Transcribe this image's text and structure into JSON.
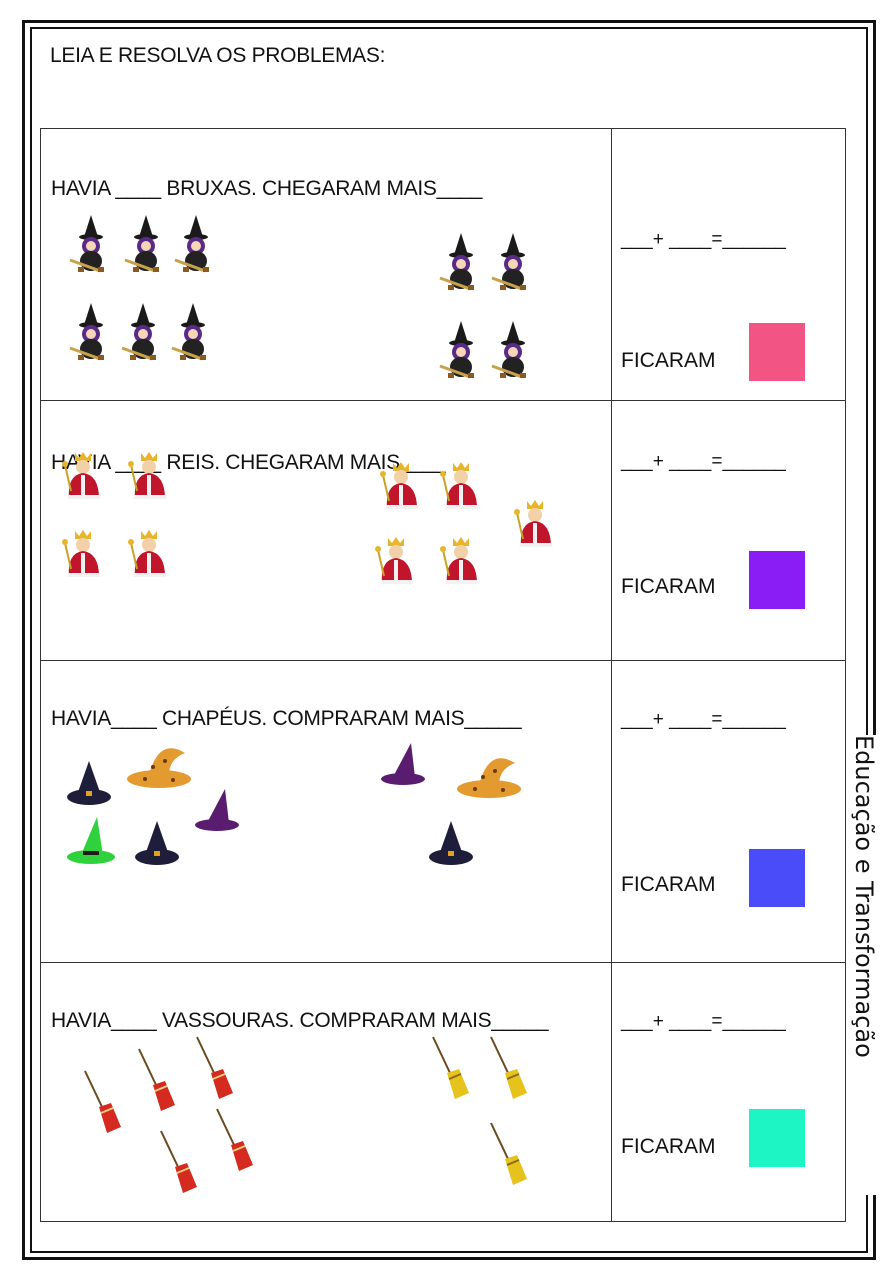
{
  "title": "LEIA E RESOLVA OS PROBLEMAS:",
  "side_label": "Educação e Transformação",
  "equation_template": "___+ ____=______",
  "ficaram_label": "FICARAM",
  "problems": [
    {
      "question": "HAVIA ____ BRUXAS. CHEGARAM MAIS____",
      "box_color": "#f25584"
    },
    {
      "question": "HAVIA ____ REIS. CHEGARAM MAIS____",
      "box_color": "#8a1cf5"
    },
    {
      "question": "HAVIA____ CHAPÉUS. COMPRARAM MAIS_____",
      "box_color": "#4a4cfa"
    },
    {
      "question": "HAVIA____ VASSOURAS. COMPRARAM MAIS_____",
      "box_color": "#1df5c4"
    }
  ]
}
